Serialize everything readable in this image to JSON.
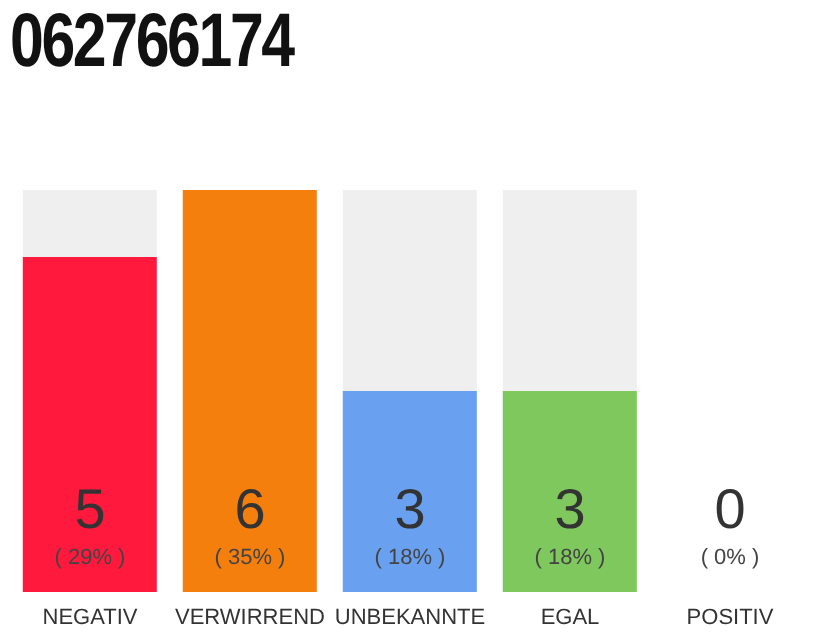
{
  "chart_data": {
    "type": "bar",
    "title": "062766174",
    "categories": [
      "NEGATIV",
      "VERWIRREND",
      "UNBEKANNTE",
      "EGAL",
      "POSITIV"
    ],
    "values": [
      5,
      6,
      3,
      3,
      0
    ],
    "colors": [
      "#ff1a3d",
      "#f57f0c",
      "#6aa0f0",
      "#7ec85d",
      "#cccccc"
    ],
    "data_labels": true,
    "annotations": [
      "( 29% )",
      "( 35% )",
      "( 18% )",
      "( 18% )",
      "( 0% )"
    ]
  }
}
